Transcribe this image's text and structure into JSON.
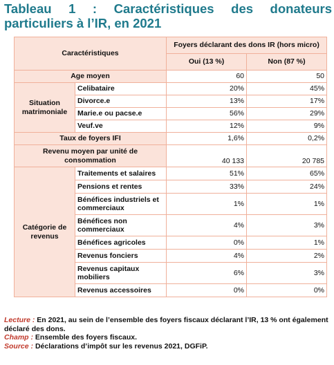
{
  "title": "Tableau 1 : Caractéristiques des donateurs particuliers à l’IR, en 2021",
  "header": {
    "characteristics": "Caractéristiques",
    "group": "Foyers déclarant des dons IR (hors micro)",
    "col_oui": "Oui (13 %)",
    "col_non": "Non (87 %)"
  },
  "age": {
    "label": "Age moyen",
    "oui": "60",
    "non": "50"
  },
  "situation": {
    "group": "Situation matrimoniale",
    "rows": [
      {
        "label": "Celibataire",
        "oui": "20%",
        "non": "45%"
      },
      {
        "label": "Divorce.e",
        "oui": "13%",
        "non": "17%"
      },
      {
        "label": "Marie.e ou pacse.e",
        "oui": "56%",
        "non": "29%"
      },
      {
        "label": "Veuf.ve",
        "oui": "12%",
        "non": "9%"
      }
    ]
  },
  "ifi": {
    "label": "Taux de foyers IFI",
    "oui": "1,6%",
    "non": "0,2%"
  },
  "revenu": {
    "label": "Revenu moyen par unité de consommation",
    "oui": "40 133",
    "non": "20 785"
  },
  "categorie": {
    "group": "Catégorie de revenus",
    "rows": [
      {
        "label": "Traitements et salaires",
        "oui": "51%",
        "non": "65%"
      },
      {
        "label": "Pensions et rentes",
        "oui": "33%",
        "non": "24%"
      },
      {
        "label": "Bénéfices industriels et commerciaux",
        "oui": "1%",
        "non": "1%"
      },
      {
        "label": "Bénéfices non commerciaux",
        "oui": "4%",
        "non": "3%"
      },
      {
        "label": "Bénéfices agricoles",
        "oui": "0%",
        "non": "1%"
      },
      {
        "label": "Revenus fonciers",
        "oui": "4%",
        "non": "2%"
      },
      {
        "label": "Revenus capitaux mobiliers",
        "oui": "6%",
        "non": "3%"
      },
      {
        "label": "Revenus accessoires",
        "oui": "0%",
        "non": "0%"
      }
    ]
  },
  "notes": {
    "lecture_label": "Lecture :",
    "lecture_text": "En 2021, au sein de l’ensemble des foyers fiscaux déclarant l’IR, 13 % ont également déclaré des dons.",
    "champ_label": "Champ :",
    "champ_text": "Ensemble des foyers fiscaux.",
    "source_label": "Source :",
    "source_text": "Déclarations d’impôt sur les revenus 2021, DGFiP."
  }
}
